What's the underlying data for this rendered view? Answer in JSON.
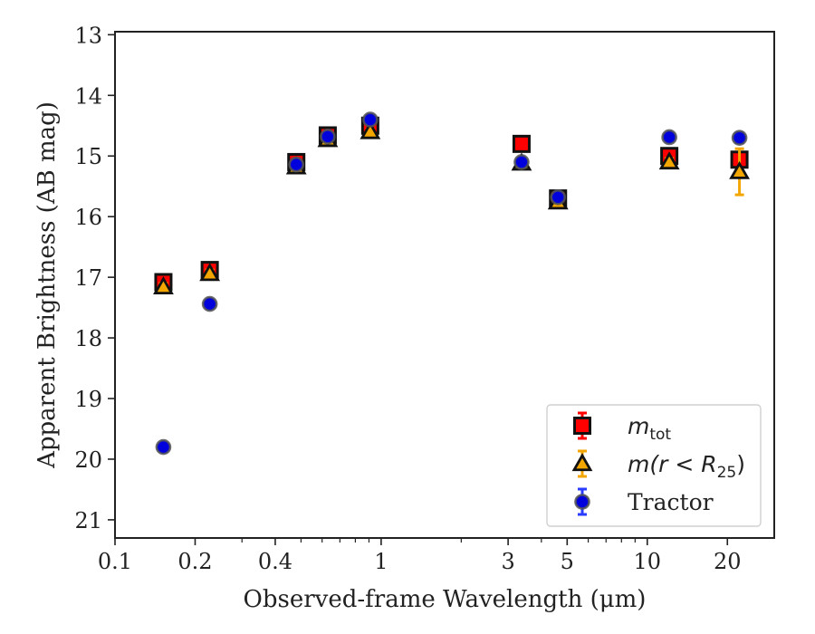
{
  "chart_data": {
    "type": "scatter",
    "xlabel": "Observed-frame Wavelength (μm)",
    "ylabel": "Apparent Brightness (AB mag)",
    "xscale": "log",
    "xlim": [
      0.1,
      30
    ],
    "ylim": [
      21.3,
      12.95
    ],
    "y_inverted": true,
    "xticks": [
      0.1,
      0.2,
      0.4,
      1,
      3,
      5,
      10,
      20
    ],
    "xtick_labels": [
      "0.1",
      "0.2",
      "0.4",
      "1",
      "3",
      "5",
      "10",
      "20"
    ],
    "yticks": [
      13,
      14,
      15,
      16,
      17,
      18,
      19,
      20,
      21
    ],
    "ytick_labels": [
      "13",
      "14",
      "15",
      "16",
      "17",
      "18",
      "19",
      "20",
      "21"
    ],
    "grid": false,
    "legend_position": "bottom-right",
    "series": [
      {
        "name": "m_tot",
        "legend_main": "m",
        "legend_sub": "tot",
        "marker": "square",
        "color": "#ff0000",
        "errcolor": "#ff0000",
        "x": [
          0.152,
          0.227,
          0.48,
          0.63,
          0.91,
          3.37,
          4.62,
          12.1,
          22.2
        ],
        "y": [
          17.08,
          16.88,
          15.1,
          14.66,
          14.5,
          14.8,
          15.7,
          15.0,
          15.06
        ],
        "yerr": [
          0.08,
          0.08,
          0.05,
          0.05,
          0.05,
          0.05,
          0.05,
          0.08,
          0.12
        ]
      },
      {
        "name": "m(r < R25)",
        "legend_main": "m(r < R",
        "legend_sub": "25",
        "legend_close": ")",
        "marker": "triangle",
        "color": "#f4a600",
        "errcolor": "#f4a600",
        "x": [
          0.152,
          0.227,
          0.48,
          0.63,
          0.91,
          3.37,
          4.62,
          12.1,
          22.2
        ],
        "y": [
          17.16,
          16.94,
          15.18,
          14.73,
          14.6,
          15.12,
          15.76,
          15.1,
          15.26
        ],
        "yerr": [
          0.06,
          0.06,
          0.04,
          0.04,
          0.04,
          0.05,
          0.05,
          0.06,
          0.38
        ]
      },
      {
        "name": "Tractor",
        "marker": "circle",
        "color": "#0000dd",
        "errcolor": "#2a3cff",
        "x": [
          0.152,
          0.227,
          0.48,
          0.63,
          0.91,
          3.37,
          4.62,
          12.1,
          22.2
        ],
        "y": [
          19.8,
          17.44,
          15.14,
          14.68,
          14.4,
          15.1,
          15.68,
          14.69,
          14.7
        ],
        "yerr": [
          0.06,
          0.06,
          0.04,
          0.04,
          0.04,
          0.04,
          0.04,
          0.06,
          0.08
        ]
      }
    ]
  }
}
